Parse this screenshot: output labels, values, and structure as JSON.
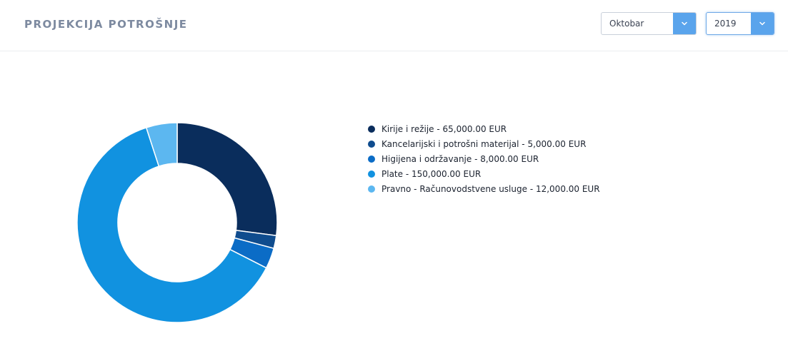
{
  "header": {
    "title": "PROJEKCIJA POTROŠNJE",
    "month_select": {
      "value": "Oktobar",
      "icon": "chevron-down-icon"
    },
    "year_select": {
      "value": "2019",
      "icon": "chevron-down-icon"
    }
  },
  "legend": {
    "items": [
      {
        "label": "Kirije i režije - 65,000.00 EUR",
        "color": "#0a2d5c"
      },
      {
        "label": "Kancelarijski i potrošni materijal - 5,000.00 EUR",
        "color": "#0f4c8e"
      },
      {
        "label": "Higijena i održavanje - 8,000.00 EUR",
        "color": "#0b6cc6"
      },
      {
        "label": "Plate - 150,000.00 EUR",
        "color": "#1192e0"
      },
      {
        "label": "Pravno - Računovodstvene usluge - 12,000.00 EUR",
        "color": "#5cb7f0"
      }
    ]
  },
  "chart_data": {
    "type": "pie",
    "variant": "donut",
    "title": "PROJEKCIJA POTROŠNJE",
    "unit": "EUR",
    "categories": [
      "Kirije i režije",
      "Kancelarijski i potrošni materijal",
      "Higijena i održavanje",
      "Plate",
      "Pravno - Računovodstvene usluge"
    ],
    "values": [
      65000,
      5000,
      8000,
      150000,
      12000
    ],
    "colors": [
      "#0a2d5c",
      "#0f4c8e",
      "#0b6cc6",
      "#1192e0",
      "#5cb7f0"
    ],
    "legend_position": "right"
  }
}
